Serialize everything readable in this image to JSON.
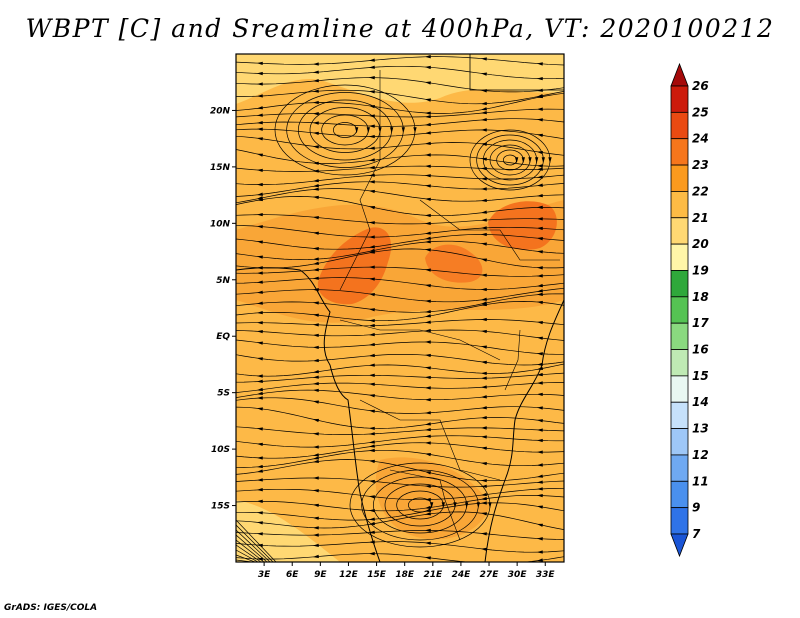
{
  "title": "WBPT [C] and Sreamline at 400hPa, VT: 2020100212",
  "credit": "GrADS: IGES/COLA",
  "map": {
    "lon_labels": [
      "3E",
      "6E",
      "9E",
      "12E",
      "15E",
      "18E",
      "21E",
      "24E",
      "27E",
      "30E",
      "33E"
    ],
    "lat_labels": [
      "20N",
      "15N",
      "10N",
      "5N",
      "EQ",
      "5S",
      "10S",
      "15S"
    ],
    "lon_values": [
      3,
      6,
      9,
      12,
      15,
      18,
      21,
      24,
      27,
      30,
      33
    ],
    "lat_values": [
      20,
      15,
      10,
      5,
      0,
      -5,
      -10,
      -15
    ],
    "lon_range": [
      0,
      35
    ],
    "lat_range": [
      -20,
      25
    ]
  },
  "colorbar": {
    "labels": [
      "7",
      "9",
      "11",
      "12",
      "13",
      "14",
      "15",
      "16",
      "17",
      "18",
      "19",
      "20",
      "21",
      "22",
      "23",
      "24",
      "25",
      "26"
    ],
    "colors": [
      "#1a55d6",
      "#2f73e8",
      "#4a90ee",
      "#6fa9f2",
      "#9ec7f7",
      "#c6e1fb",
      "#e9f7f2",
      "#bfeab4",
      "#8ad97f",
      "#55c353",
      "#2fa83b",
      "#fff5a8",
      "#ffd873",
      "#fdbb45",
      "#fb9a1e",
      "#f6761c",
      "#ea4a12",
      "#cc1b0b",
      "#a50a0a"
    ]
  },
  "legend": {
    "colors": {
      "sea": "#ffe39a",
      "base": "#fdb947",
      "warm": "#f99a2a",
      "hot": "#f4731e"
    }
  }
}
